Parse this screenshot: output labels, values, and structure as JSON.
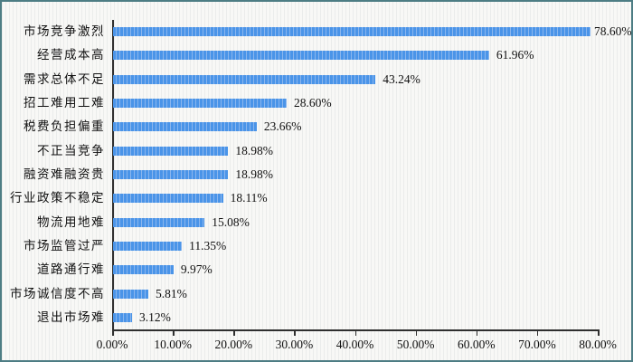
{
  "chart_data": {
    "type": "bar",
    "orientation": "horizontal",
    "title": "",
    "xlabel": "",
    "ylabel": "",
    "categories": [
      "市场竞争激烈",
      "经营成本高",
      "需求总体不足",
      "招工难用工难",
      "税费负担偏重",
      "不正当竞争",
      "融资难融资贵",
      "行业政策不稳定",
      "物流用地难",
      "市场监管过严",
      "道路通行难",
      "市场诚信度不高",
      "退出市场难"
    ],
    "values": [
      78.6,
      61.96,
      43.24,
      28.6,
      23.66,
      18.98,
      18.98,
      18.11,
      15.08,
      11.35,
      9.97,
      5.81,
      3.12
    ],
    "value_labels": [
      "78.60%",
      "61.96%",
      "43.24%",
      "28.60%",
      "23.66%",
      "18.98%",
      "18.98%",
      "18.11%",
      "15.08%",
      "11.35%",
      "9.97%",
      "5.81%",
      "3.12%"
    ],
    "x_tick_labels": [
      "0.00%",
      "10.00%",
      "20.00%",
      "30.00%",
      "40.00%",
      "50.00%",
      "60.00%",
      "70.00%",
      "80.00%"
    ],
    "xlim": [
      0,
      80
    ],
    "grid": "off",
    "legend": "none",
    "colors": {
      "bar": "#4a94e8",
      "bar_stripe": "#8ab6ee",
      "axis": "#2f2f2f",
      "text": "#111111",
      "background": "#f8f8f6",
      "frame_border": "#4d7d84"
    }
  }
}
